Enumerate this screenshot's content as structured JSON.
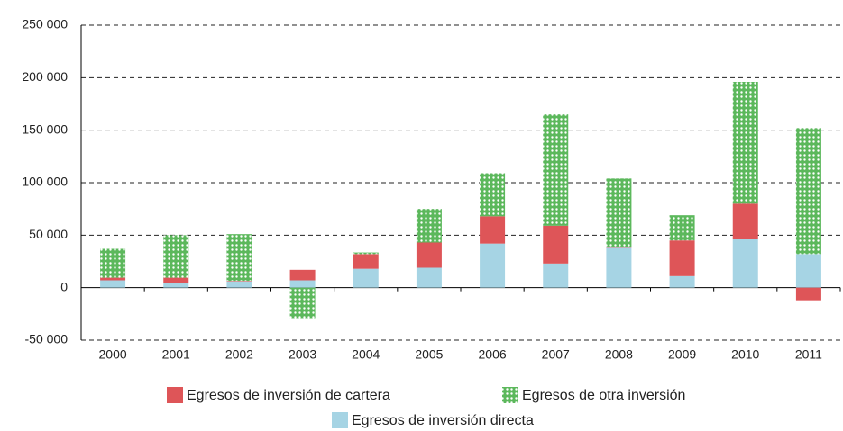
{
  "chart_data": {
    "type": "stacked_bar",
    "categories": [
      "2000",
      "2001",
      "2002",
      "2003",
      "2004",
      "2005",
      "2006",
      "2007",
      "2008",
      "2009",
      "2010",
      "2011"
    ],
    "series": [
      {
        "name": "Egresos de inversión directa",
        "color": "#a6d4e4",
        "values": [
          7000,
          4500,
          6000,
          7000,
          18000,
          19000,
          42000,
          23000,
          38000,
          11000,
          46000,
          32000
        ]
      },
      {
        "name": "Egresos de inversión de cartera",
        "color": "#de5558",
        "values": [
          2500,
          5000,
          500,
          10000,
          14000,
          24000,
          26000,
          36000,
          1000,
          34000,
          34000,
          -12000
        ]
      },
      {
        "name": "Egresos de otra inversión",
        "color": "#5cb85c",
        "pattern": "dots",
        "values": [
          27500,
          40500,
          44500,
          -29000,
          1500,
          32000,
          41000,
          106000,
          65000,
          24000,
          116000,
          120000
        ]
      }
    ],
    "ylim": [
      -50000,
      250000
    ],
    "yticks": [
      {
        "value": -50000,
        "label": "-50 000"
      },
      0,
      {
        "value": 50000,
        "label": "50 000"
      },
      {
        "value": 100000,
        "label": "100 000"
      },
      {
        "value": 150000,
        "label": "150 000"
      },
      {
        "value": 200000,
        "label": "200 000"
      },
      {
        "value": 250000,
        "label": "250 000"
      }
    ],
    "grid": true
  }
}
